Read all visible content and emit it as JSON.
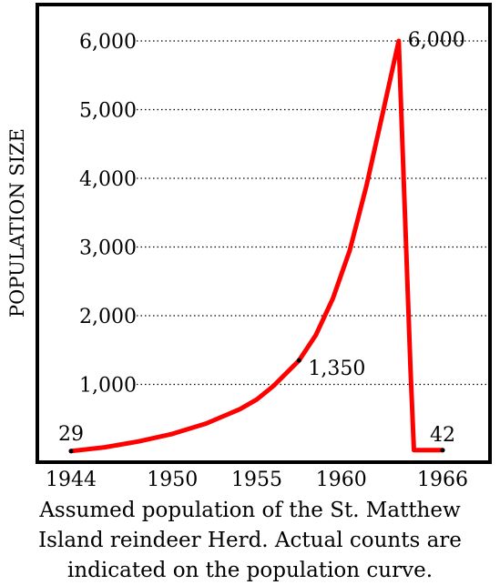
{
  "chart_data": {
    "type": "line",
    "title": "",
    "xlabel": "",
    "ylabel": "POPULATION SIZE",
    "xlim": [
      1944,
      1966
    ],
    "ylim": [
      0,
      6000
    ],
    "x_ticks": [
      1944,
      1950,
      1955,
      1960,
      1966
    ],
    "x_tick_labels": [
      "1944",
      "1950",
      "1955",
      "1960",
      "1966"
    ],
    "y_ticks": [
      1000,
      2000,
      3000,
      4000,
      5000,
      6000
    ],
    "y_tick_labels": [
      "1,000",
      "2,000",
      "3,000",
      "4,000",
      "5,000",
      "6,000"
    ],
    "grid": "horizontal dotted",
    "series": [
      {
        "color": "#ff0000",
        "x": [
          1944,
          1946,
          1948,
          1950,
          1952,
          1954,
          1955,
          1956,
          1957.5,
          1958.5,
          1959.5,
          1960.5,
          1961.5,
          1962.5,
          1963.4,
          1964.1,
          1964.3,
          1966
        ],
        "y": [
          29,
          85,
          170,
          280,
          430,
          640,
          780,
          980,
          1350,
          1720,
          2250,
          2950,
          3900,
          5000,
          6000,
          1200,
          42,
          42
        ]
      }
    ],
    "annotations": [
      {
        "label": "29",
        "x": 1944,
        "y": 29,
        "marker": true
      },
      {
        "label": "1,350",
        "x": 1957.5,
        "y": 1350,
        "marker": true
      },
      {
        "label": "6,000",
        "x": 1963.4,
        "y": 6000,
        "marker": false
      },
      {
        "label": "42",
        "x": 1966,
        "y": 42,
        "marker": true
      }
    ]
  },
  "caption": {
    "line1": "Assumed population of the St. Matthew",
    "line2": "Island reindeer Herd.  Actual counts are",
    "line3": "indicated on the population curve."
  }
}
